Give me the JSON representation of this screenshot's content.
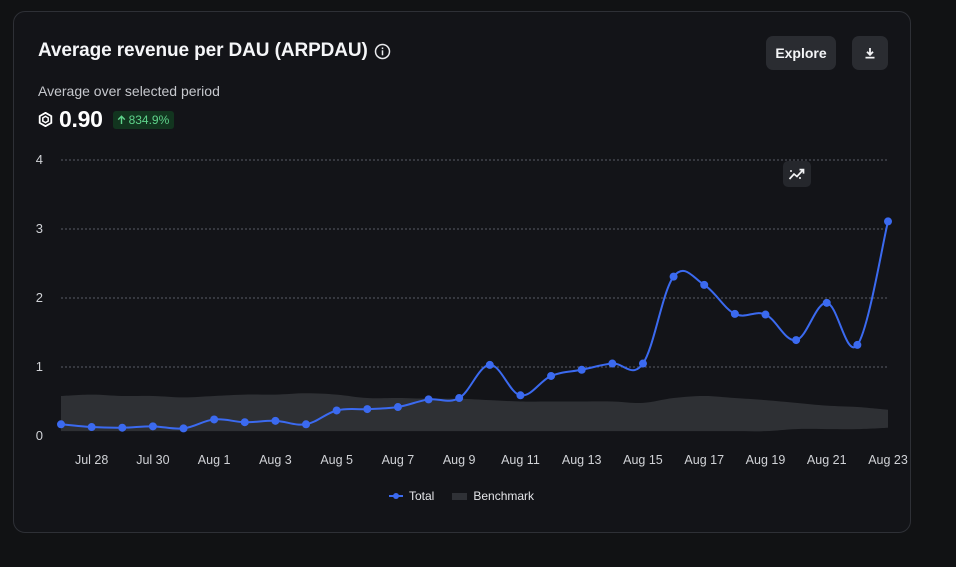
{
  "header": {
    "title": "Average revenue per DAU (ARPDAU)",
    "info_icon": "info-icon",
    "subtitle": "Average over selected period",
    "metric_icon": "robux-icon",
    "metric_value": "0.90",
    "change_badge": "834.9%",
    "change_direction": "up",
    "explore_label": "Explore",
    "download_icon": "download-icon",
    "trend_icon": "trend-icon"
  },
  "colors": {
    "series_total": "#3b6af0",
    "benchmark_band": "#2f3136",
    "badge_bg": "#12351f",
    "badge_text": "#5fd38b"
  },
  "chart_data": {
    "type": "line",
    "xlabel": "",
    "ylabel": "",
    "ylim": [
      0,
      4
    ],
    "yticks": [
      0,
      1,
      2,
      3,
      4
    ],
    "grid": true,
    "legend_placement": "bottom-center",
    "x": [
      "Jul 27",
      "Jul 28",
      "Jul 29",
      "Jul 30",
      "Jul 31",
      "Aug 1",
      "Aug 2",
      "Aug 3",
      "Aug 4",
      "Aug 5",
      "Aug 6",
      "Aug 7",
      "Aug 8",
      "Aug 9",
      "Aug 10",
      "Aug 11",
      "Aug 12",
      "Aug 13",
      "Aug 14",
      "Aug 15",
      "Aug 16",
      "Aug 17",
      "Aug 18",
      "Aug 19",
      "Aug 20",
      "Aug 21",
      "Aug 22",
      "Aug 23"
    ],
    "xtick_labels": [
      "Jul 28",
      "Jul 30",
      "Aug 1",
      "Aug 3",
      "Aug 5",
      "Aug 7",
      "Aug 9",
      "Aug 11",
      "Aug 13",
      "Aug 15",
      "Aug 17",
      "Aug 19",
      "Aug 21",
      "Aug 23"
    ],
    "series": [
      {
        "name": "Total",
        "values": [
          0.17,
          0.13,
          0.12,
          0.14,
          0.11,
          0.24,
          0.2,
          0.22,
          0.17,
          0.37,
          0.39,
          0.42,
          0.53,
          0.55,
          1.03,
          0.59,
          0.87,
          0.96,
          1.05,
          1.05,
          2.31,
          2.19,
          1.77,
          1.76,
          1.39,
          1.93,
          1.32,
          3.11
        ]
      },
      {
        "name": "Benchmark",
        "type": "band",
        "lower": [
          0.07,
          0.07,
          0.07,
          0.07,
          0.07,
          0.07,
          0.07,
          0.07,
          0.07,
          0.07,
          0.07,
          0.07,
          0.07,
          0.07,
          0.07,
          0.07,
          0.07,
          0.07,
          0.07,
          0.07,
          0.07,
          0.07,
          0.07,
          0.07,
          0.1,
          0.1,
          0.1,
          0.12
        ],
        "upper": [
          0.58,
          0.6,
          0.58,
          0.58,
          0.56,
          0.58,
          0.6,
          0.6,
          0.62,
          0.6,
          0.55,
          0.55,
          0.54,
          0.54,
          0.52,
          0.5,
          0.5,
          0.5,
          0.5,
          0.48,
          0.55,
          0.58,
          0.55,
          0.52,
          0.48,
          0.44,
          0.42,
          0.38
        ]
      }
    ]
  }
}
